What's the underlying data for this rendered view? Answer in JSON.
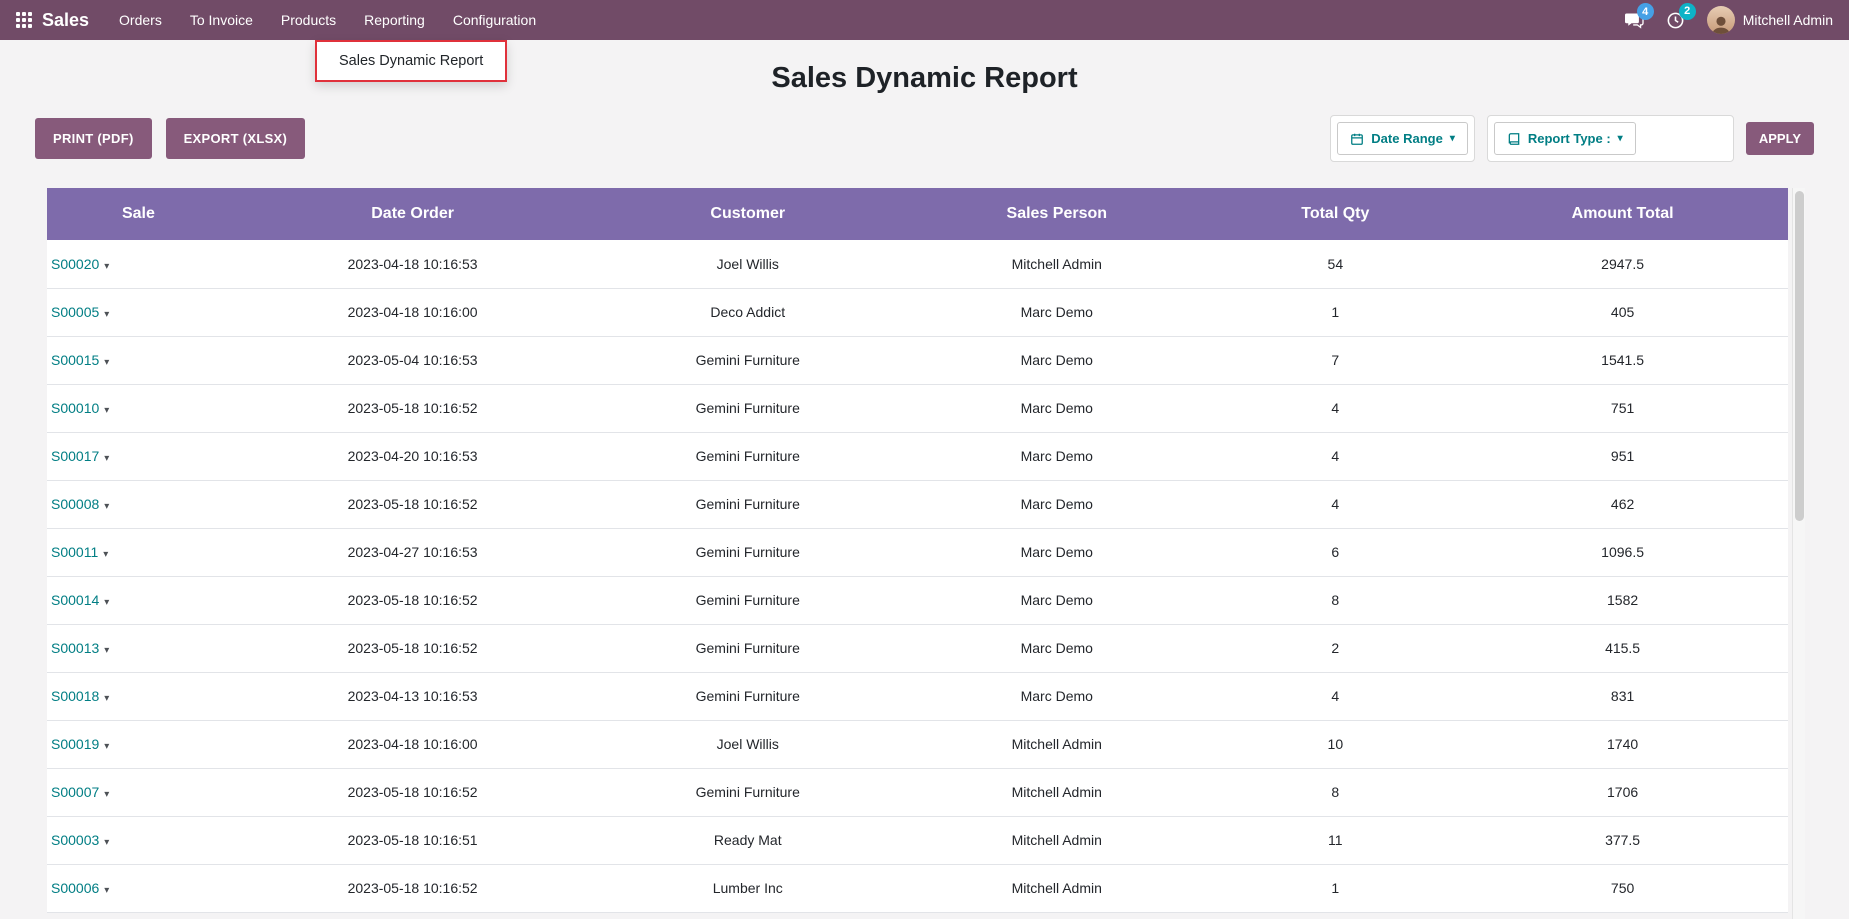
{
  "topbar": {
    "brand": "Sales",
    "menus": [
      "Orders",
      "To Invoice",
      "Products",
      "Reporting",
      "Configuration"
    ],
    "badges": {
      "messages": "4",
      "activities": "2"
    },
    "user": "Mitchell Admin"
  },
  "nav_dropdown": {
    "item": "Sales Dynamic Report"
  },
  "page": {
    "title": "Sales Dynamic Report"
  },
  "toolbar": {
    "print_label": "PRINT (PDF)",
    "export_label": "EXPORT (XLSX)",
    "date_range_label": "Date Range",
    "report_type_label": "Report Type :",
    "apply_label": "APPLY"
  },
  "icons": {
    "caret_down": "▾"
  },
  "colors": {
    "topbar_bg": "#714B67",
    "button_purple": "#875A7B",
    "table_header_bg": "#7E6BAB",
    "link_teal": "#017E84",
    "annotation_red": "#E0313B",
    "badge_messages": "#45A0E5",
    "badge_activities": "#0DB3C7"
  },
  "table": {
    "headers": [
      "Sale",
      "Date Order",
      "Customer",
      "Sales Person",
      "Total Qty",
      "Amount Total"
    ],
    "rows": [
      [
        "S00020",
        "2023-04-18 10:16:53",
        "Joel Willis",
        "Mitchell Admin",
        "54",
        "2947.5"
      ],
      [
        "S00005",
        "2023-04-18 10:16:00",
        "Deco Addict",
        "Marc Demo",
        "1",
        "405"
      ],
      [
        "S00015",
        "2023-05-04 10:16:53",
        "Gemini Furniture",
        "Marc Demo",
        "7",
        "1541.5"
      ],
      [
        "S00010",
        "2023-05-18 10:16:52",
        "Gemini Furniture",
        "Marc Demo",
        "4",
        "751"
      ],
      [
        "S00017",
        "2023-04-20 10:16:53",
        "Gemini Furniture",
        "Marc Demo",
        "4",
        "951"
      ],
      [
        "S00008",
        "2023-05-18 10:16:52",
        "Gemini Furniture",
        "Marc Demo",
        "4",
        "462"
      ],
      [
        "S00011",
        "2023-04-27 10:16:53",
        "Gemini Furniture",
        "Marc Demo",
        "6",
        "1096.5"
      ],
      [
        "S00014",
        "2023-05-18 10:16:52",
        "Gemini Furniture",
        "Marc Demo",
        "8",
        "1582"
      ],
      [
        "S00013",
        "2023-05-18 10:16:52",
        "Gemini Furniture",
        "Marc Demo",
        "2",
        "415.5"
      ],
      [
        "S00018",
        "2023-04-13 10:16:53",
        "Gemini Furniture",
        "Marc Demo",
        "4",
        "831"
      ],
      [
        "S00019",
        "2023-04-18 10:16:00",
        "Joel Willis",
        "Mitchell Admin",
        "10",
        "1740"
      ],
      [
        "S00007",
        "2023-05-18 10:16:52",
        "Gemini Furniture",
        "Mitchell Admin",
        "8",
        "1706"
      ],
      [
        "S00003",
        "2023-05-18 10:16:51",
        "Ready Mat",
        "Mitchell Admin",
        "11",
        "377.5"
      ],
      [
        "S00006",
        "2023-05-18 10:16:52",
        "Lumber Inc",
        "Mitchell Admin",
        "1",
        "750"
      ]
    ]
  }
}
